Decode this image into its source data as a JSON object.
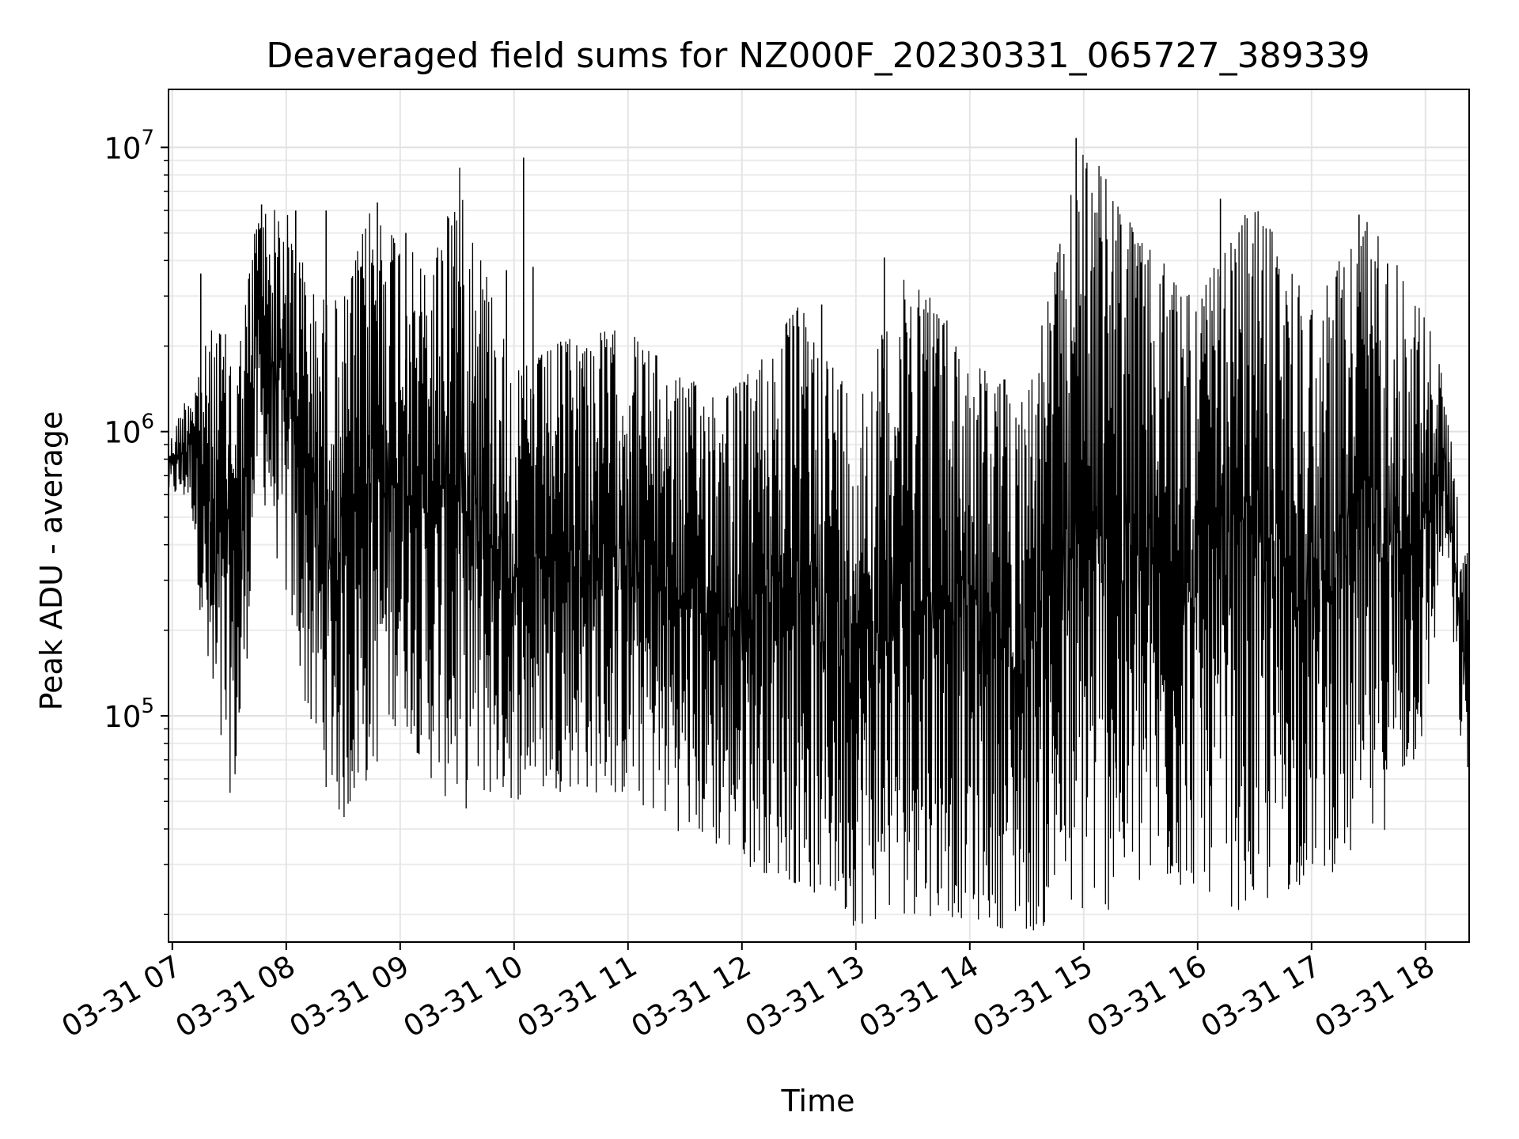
{
  "chart_data": {
    "type": "line",
    "title": "Deaveraged field sums for NZ000F_20230331_065727_389339",
    "xlabel": "Time",
    "ylabel": "Peak ADU - average",
    "y_scale": "log",
    "ylim": [
      16000,
      16000000
    ],
    "xlim": [
      "2023-03-31 06:58",
      "2023-03-31 18:23"
    ],
    "grid": true,
    "line_color": "#000000",
    "x_ticks": [
      "03-31 07",
      "03-31 08",
      "03-31 09",
      "03-31 10",
      "03-31 11",
      "03-31 12",
      "03-31 13",
      "03-31 14",
      "03-31 15",
      "03-31 16",
      "03-31 17",
      "03-31 18"
    ],
    "y_ticks": [
      {
        "value": 100000,
        "base": "10",
        "exp": "5"
      },
      {
        "value": 1000000,
        "base": "10",
        "exp": "6"
      },
      {
        "value": 10000000,
        "base": "10",
        "exp": "7"
      }
    ],
    "series": [
      {
        "description_of_data": "dense oscillating signal; envelope per 15 minutes",
        "envelope": [
          {
            "t": "2023-03-31 06:58",
            "low": 600000,
            "high": 900000
          },
          {
            "t": "2023-03-31 07:10",
            "low": 550000,
            "high": 1500000
          },
          {
            "t": "2023-03-31 07:22",
            "low": 60000,
            "high": 2400000
          },
          {
            "t": "2023-03-31 07:35",
            "low": 50000,
            "high": 2000000
          },
          {
            "t": "2023-03-31 07:45",
            "low": 700000,
            "high": 6200000
          },
          {
            "t": "2023-03-31 08:00",
            "low": 250000,
            "high": 6000000
          },
          {
            "t": "2023-03-31 08:15",
            "low": 70000,
            "high": 3000000
          },
          {
            "t": "2023-03-31 08:30",
            "low": 40000,
            "high": 2900000
          },
          {
            "t": "2023-03-31 08:45",
            "low": 60000,
            "high": 6400000
          },
          {
            "t": "2023-03-31 09:00",
            "low": 100000,
            "high": 5000000
          },
          {
            "t": "2023-03-31 09:15",
            "low": 60000,
            "high": 3500000
          },
          {
            "t": "2023-03-31 09:30",
            "low": 45000,
            "high": 9200000
          },
          {
            "t": "2023-03-31 09:45",
            "low": 50000,
            "high": 3800000
          },
          {
            "t": "2023-03-31 10:00",
            "low": 50000,
            "high": 1600000
          },
          {
            "t": "2023-03-31 10:30",
            "low": 55000,
            "high": 2200000
          },
          {
            "t": "2023-03-31 11:00",
            "low": 50000,
            "high": 2300000
          },
          {
            "t": "2023-03-31 11:30",
            "low": 38000,
            "high": 1500000
          },
          {
            "t": "2023-03-31 12:00",
            "low": 30000,
            "high": 1500000
          },
          {
            "t": "2023-03-31 12:30",
            "low": 25000,
            "high": 2800000
          },
          {
            "t": "2023-03-31 13:00",
            "low": 18000,
            "high": 1300000
          },
          {
            "t": "2023-03-31 13:30",
            "low": 20000,
            "high": 4100000
          },
          {
            "t": "2023-03-31 14:00",
            "low": 19000,
            "high": 1800000
          },
          {
            "t": "2023-03-31 14:30",
            "low": 17000,
            "high": 1400000
          },
          {
            "t": "2023-03-31 15:00",
            "low": 19000,
            "high": 10800000
          },
          {
            "t": "2023-03-31 15:30",
            "low": 22000,
            "high": 4700000
          },
          {
            "t": "2023-03-31 16:00",
            "low": 25000,
            "high": 3000000
          },
          {
            "t": "2023-03-31 16:30",
            "low": 19000,
            "high": 6600000
          },
          {
            "t": "2023-03-31 17:00",
            "low": 27000,
            "high": 2800000
          },
          {
            "t": "2023-03-31 17:30",
            "low": 30000,
            "high": 5800000
          },
          {
            "t": "2023-03-31 18:00",
            "low": 80000,
            "high": 2600000
          },
          {
            "t": "2023-03-31 18:10",
            "low": 400000,
            "high": 1500000
          },
          {
            "t": "2023-03-31 18:20",
            "low": 60000,
            "high": 380000
          }
        ],
        "spikes": [
          {
            "t": "2023-03-31 07:15",
            "value": 3600000
          },
          {
            "t": "2023-03-31 07:47",
            "value": 6300000
          },
          {
            "t": "2023-03-31 08:05",
            "value": 6000000
          },
          {
            "t": "2023-03-31 08:21",
            "value": 6000000
          },
          {
            "t": "2023-03-31 08:48",
            "value": 6400000
          },
          {
            "t": "2023-03-31 09:03",
            "value": 5000000
          },
          {
            "t": "2023-03-31 09:56",
            "value": 3700000
          },
          {
            "t": "2023-03-31 10:05",
            "value": 9200000
          },
          {
            "t": "2023-03-31 10:10",
            "value": 3800000
          },
          {
            "t": "2023-03-31 12:42",
            "value": 2800000
          },
          {
            "t": "2023-03-31 13:15",
            "value": 4100000
          },
          {
            "t": "2023-03-31 14:56",
            "value": 10800000
          },
          {
            "t": "2023-03-31 15:17",
            "value": 4700000
          },
          {
            "t": "2023-03-31 16:12",
            "value": 6600000
          },
          {
            "t": "2023-03-31 17:25",
            "value": 5800000
          },
          {
            "t": "2023-03-31 17:40",
            "value": 3900000
          }
        ]
      }
    ]
  }
}
